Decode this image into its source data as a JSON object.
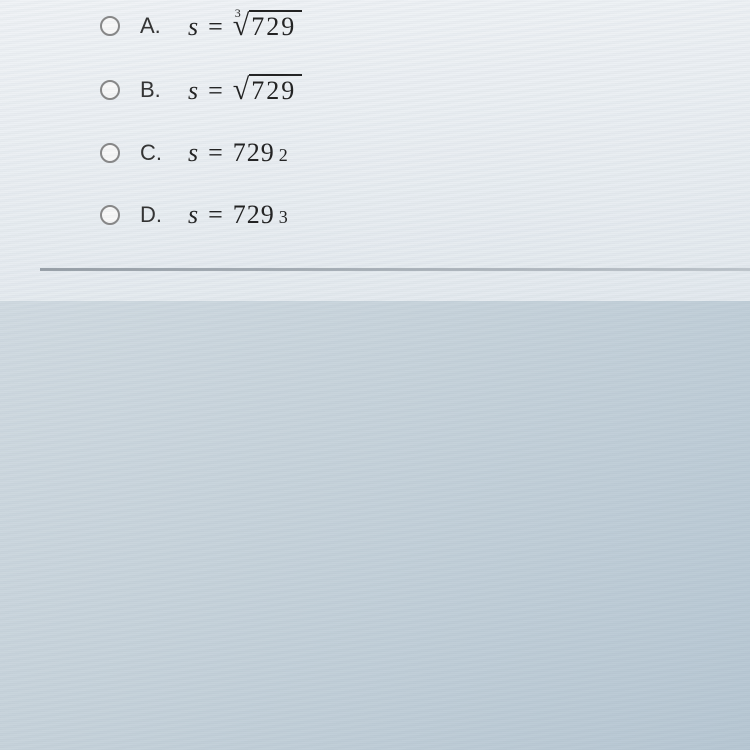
{
  "options": [
    {
      "letter": "A.",
      "type": "root",
      "variable": "s",
      "rootIndex": "3",
      "radicand": "729"
    },
    {
      "letter": "B.",
      "type": "root",
      "variable": "s",
      "rootIndex": "",
      "radicand": "729"
    },
    {
      "letter": "C.",
      "type": "power",
      "variable": "s",
      "base": "729",
      "exponent": "2"
    },
    {
      "letter": "D.",
      "type": "power",
      "variable": "s",
      "base": "729",
      "exponent": "3"
    }
  ],
  "colors": {
    "panel_bg": "#eef2f5",
    "text": "#222222",
    "radio_border": "#888888",
    "divider": "#6c7680"
  },
  "typography": {
    "option_label_size": 22,
    "math_size": 26,
    "superscript_size": 18,
    "root_index_size": 12,
    "font_family_math": "Times New Roman"
  },
  "equals_sign": "="
}
